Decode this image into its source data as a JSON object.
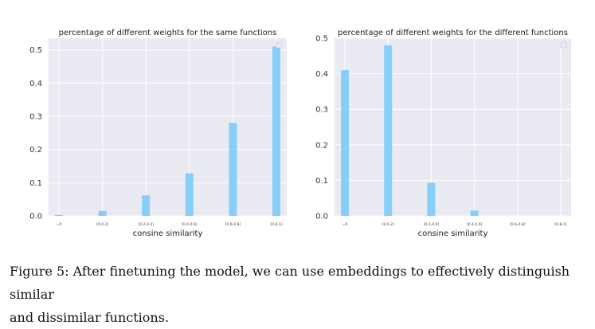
{
  "chart_data": [
    {
      "type": "bar",
      "title": "percentage of different weights for the same functions",
      "xlabel": "consine similarity",
      "ylabel": "",
      "categories": [
        "=0",
        "[0-0.2]",
        "[0.2-0.4]",
        "[0.4-0.6]",
        "[0.6-0.8]",
        "[0.8-1]"
      ],
      "values": [
        0.003,
        0.015,
        0.062,
        0.128,
        0.28,
        0.51
      ],
      "ylim": [
        0,
        0.535
      ],
      "yticks": [
        "0.0",
        "0.1",
        "0.2",
        "0.3",
        "0.4",
        "0.5"
      ],
      "grid": true,
      "legend": "top-right",
      "bar_color": "#87cefa",
      "background": "#eaeaf2"
    },
    {
      "type": "bar",
      "title": "percentage of different weights for the different functions",
      "xlabel": "consine similarity",
      "ylabel": "",
      "categories": [
        "=0",
        "[0-0.2]",
        "[0.2-0.4]",
        "[0.4-0.6]",
        "[0.6-0.8]",
        "[0.8-1]"
      ],
      "values": [
        0.41,
        0.48,
        0.093,
        0.015,
        0,
        0
      ],
      "ylim": [
        0,
        0.5
      ],
      "yticks": [
        "0.0",
        "0.1",
        "0.2",
        "0.3",
        "0.4",
        "0.5"
      ],
      "grid": true,
      "legend": "top-right",
      "bar_color": "#87cefa",
      "background": "#eaeaf2"
    }
  ],
  "caption": {
    "line1": "Figure 5: After finetuning the model, we can use embeddings to effectively distinguish similar",
    "line2": "and dissimilar functions."
  }
}
